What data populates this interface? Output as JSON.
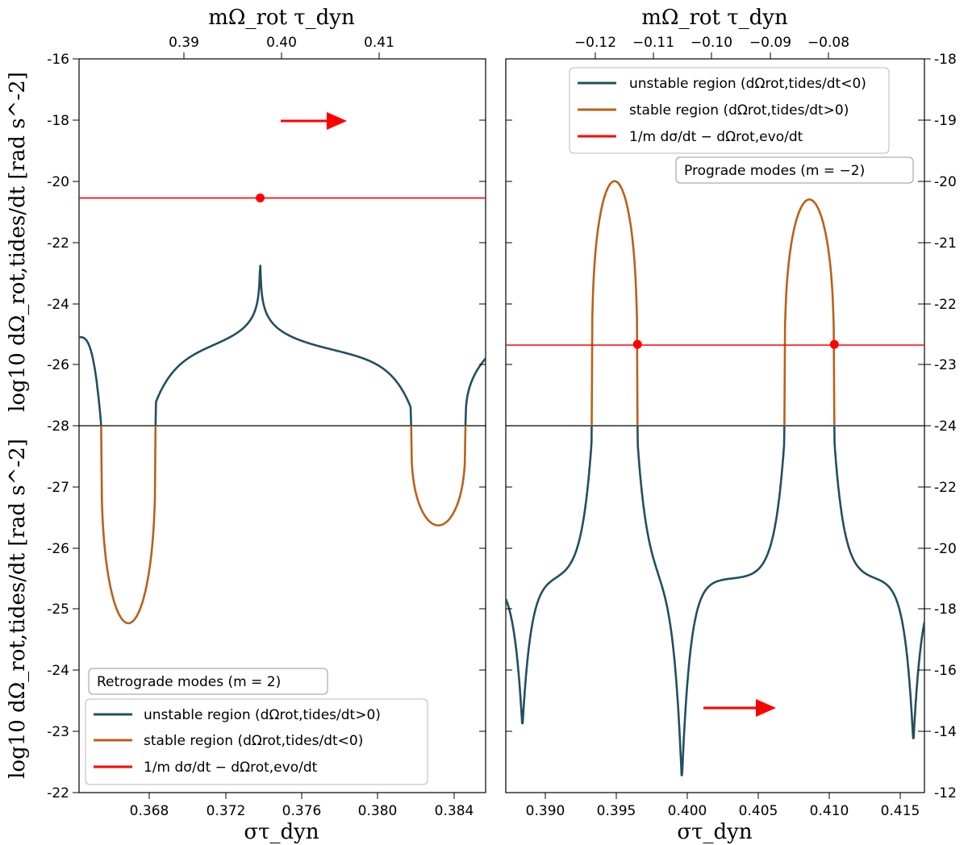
{
  "chart_data": [
    {
      "id": "left",
      "type": "line",
      "title": "Retrograde modes (m = 2)",
      "xlabel_bottom": "στ_dyn",
      "xlabel_top": "mΩ_rot τ_dyn",
      "ylabel_top_panel": "log10 dΩ_rot,tides/dt [rad s^-2]",
      "ylabel_bottom_panel": "log10 dΩ_rot,tides/dt [rad s^-2]",
      "xlim": [
        0.3648,
        0.385
      ],
      "top_axis_ticks": [
        "0.39",
        "0.40",
        "0.41"
      ],
      "bottom_axis_ticks": [
        "0.368",
        "0.372",
        "0.376",
        "0.380",
        "0.384"
      ],
      "upper_ylim": [
        -28,
        -16
      ],
      "upper_yticks": [
        "-16",
        "-18",
        "-20",
        "-22",
        "-24",
        "-26",
        "-28"
      ],
      "lower_ylim": [
        -28,
        -22
      ],
      "lower_yticks": [
        "-27",
        "-26",
        "-25",
        "-24",
        "-23",
        "-22"
      ],
      "resonance_center": 0.3738,
      "threshold_level": -20.55,
      "intersections": [
        0.3738
      ],
      "unstable_intervals": [
        [
          0.3648,
          0.3659
        ],
        [
          0.3686,
          0.3813
        ],
        [
          0.384,
          0.385
        ]
      ],
      "stable_intervals": [
        [
          0.3659,
          0.3686
        ],
        [
          0.3813,
          0.384
        ]
      ],
      "stable_minima": [
        {
          "x": 0.3671,
          "y": -24.77
        },
        {
          "x": 0.3824,
          "y": -26.37
        }
      ],
      "legend_position": "bottom-left",
      "legend": [
        {
          "label": "unstable region (dΩrot,tides/dt>0)",
          "color": "#234f5f"
        },
        {
          "label": "stable region (dΩrot,tides/dt<0)",
          "color": "#b8621a"
        },
        {
          "label": "1/m dσ/dt − dΩrot,evo/dt",
          "color": "#ff0000"
        }
      ],
      "arrow_position": "upper panel, pointing right"
    },
    {
      "id": "right",
      "type": "line",
      "title": "Prograde modes (m = −2)",
      "xlabel_bottom": "στ_dyn",
      "xlabel_top": "mΩ_rot τ_dyn",
      "xlim": [
        0.3872,
        0.4174
      ],
      "top_axis_ticks": [
        "−0.12",
        "−0.11",
        "−0.10",
        "−0.09",
        "−0.08"
      ],
      "bottom_axis_ticks": [
        "0.390",
        "0.395",
        "0.400",
        "0.405",
        "0.410",
        "0.415"
      ],
      "upper_ylim": [
        -24,
        -18
      ],
      "upper_yticks": [
        "-18",
        "-19",
        "-20",
        "-21",
        "-22",
        "-23",
        "-24"
      ],
      "lower_ylim": [
        -24,
        -12
      ],
      "lower_yticks": [
        "-22",
        "-20",
        "-18",
        "-16",
        "-14",
        "-12"
      ],
      "threshold_level": -22.67,
      "intersections": [
        0.3967,
        0.4109
      ],
      "stable_lobes": [
        {
          "from": 0.3934,
          "to": 0.3967,
          "peak_x": 0.3953,
          "peak_y": -20.0
        },
        {
          "from": 0.4073,
          "to": 0.4109,
          "peak_x": 0.4094,
          "peak_y": -20.3
        }
      ],
      "unstable_dips": [
        {
          "x": 0.3884,
          "y": -14.1
        },
        {
          "x": 0.3999,
          "y": -12.3
        },
        {
          "x": 0.4166,
          "y": -13.6
        }
      ],
      "legend_position": "top-right",
      "legend": [
        {
          "label": "unstable region (dΩrot,tides/dt<0)",
          "color": "#234f5f"
        },
        {
          "label": "stable region (dΩrot,tides/dt>0)",
          "color": "#b8621a"
        },
        {
          "label": "1/m dσ/dt − dΩrot,evo/dt",
          "color": "#ff0000"
        }
      ],
      "arrow_position": "lower panel, pointing right"
    }
  ],
  "colors": {
    "unstable": "#234f5f",
    "stable": "#b8621a",
    "threshold": "#ff0000",
    "point": "#ff0000"
  }
}
